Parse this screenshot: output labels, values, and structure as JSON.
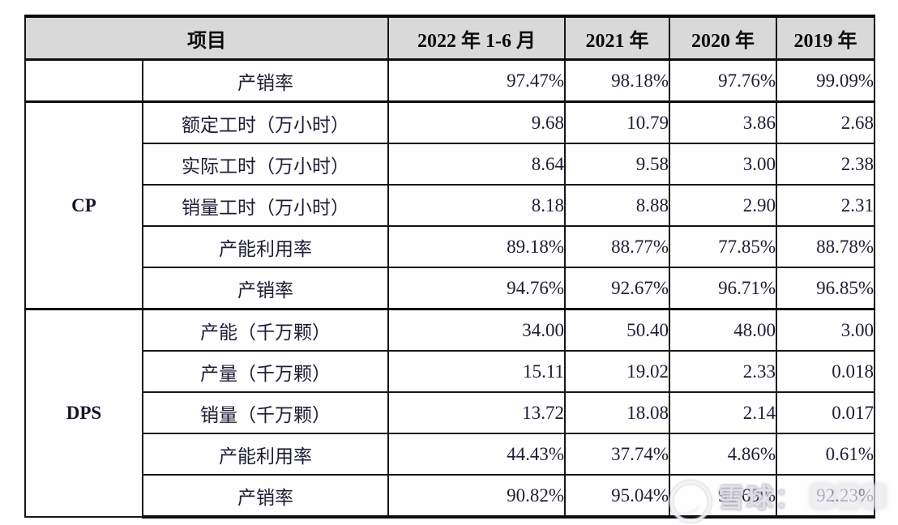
{
  "table": {
    "header": {
      "item": "项目",
      "cols": [
        "2022 年 1-6 月",
        "2021 年",
        "2020 年",
        "2019 年"
      ]
    },
    "groups": [
      {
        "label": "CP"
      },
      {
        "label": "DPS"
      }
    ],
    "rows": [
      {
        "label": "产销率",
        "values": [
          "97.47%",
          "98.18%",
          "97.76%",
          "99.09%"
        ]
      },
      {
        "label": "额定工时（万小时）",
        "values": [
          "9.68",
          "10.79",
          "3.86",
          "2.68"
        ]
      },
      {
        "label": "实际工时（万小时）",
        "values": [
          "8.64",
          "9.58",
          "3.00",
          "2.38"
        ]
      },
      {
        "label": "销量工时（万小时）",
        "values": [
          "8.18",
          "8.88",
          "2.90",
          "2.31"
        ]
      },
      {
        "label": "产能利用率",
        "values": [
          "89.18%",
          "88.77%",
          "77.85%",
          "88.78%"
        ]
      },
      {
        "label": "产销率",
        "values": [
          "94.76%",
          "92.67%",
          "96.71%",
          "96.85%"
        ]
      },
      {
        "label": "产能（千万颗）",
        "values": [
          "34.00",
          "50.40",
          "48.00",
          "3.00"
        ]
      },
      {
        "label": "产量（千万颗）",
        "values": [
          "15.11",
          "19.02",
          "2.33",
          "0.018"
        ]
      },
      {
        "label": "销量（千万颗）",
        "values": [
          "13.72",
          "18.08",
          "2.14",
          "0.017"
        ]
      },
      {
        "label": "产能利用率",
        "values": [
          "44.43%",
          "37.74%",
          "4.86%",
          "0.61%"
        ]
      },
      {
        "label": "产销率",
        "values": [
          "90.82%",
          "95.04%",
          "91.69%",
          "92.23%"
        ]
      }
    ]
  },
  "watermark": {
    "brand": "雪球："
  },
  "colors": {
    "header_bg": "#d9d9d9",
    "border": "#0c0c0c",
    "text": "#1d1d36",
    "page_bg": "#ffffff"
  }
}
